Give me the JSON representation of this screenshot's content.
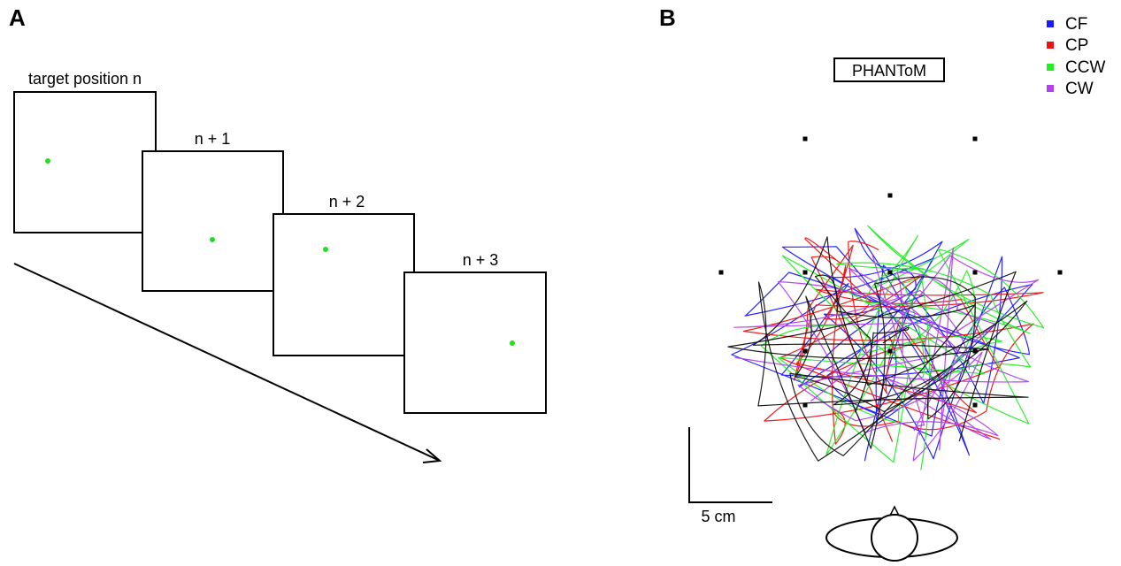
{
  "panel_a": {
    "letter": "A",
    "frames": [
      {
        "label": "target position n"
      },
      {
        "label": "n + 1"
      },
      {
        "label": "n + 2"
      },
      {
        "label": "n + 3"
      }
    ],
    "dot_color": "#22dd22"
  },
  "panel_b": {
    "letter": "B",
    "device_label": "PHANToM",
    "scale_bar_label": "5 cm",
    "legend": [
      {
        "label": "CF",
        "color": "#1a1aff"
      },
      {
        "label": "CP",
        "color": "#ee1111"
      },
      {
        "label": "CCW",
        "color": "#22ee22"
      },
      {
        "label": "CW",
        "color": "#b040f0"
      }
    ],
    "trajectory_colors": [
      "#1a1aff",
      "#ee1111",
      "#22ee22",
      "#b040f0",
      "#111111"
    ],
    "target_marker_color": "#000000"
  }
}
